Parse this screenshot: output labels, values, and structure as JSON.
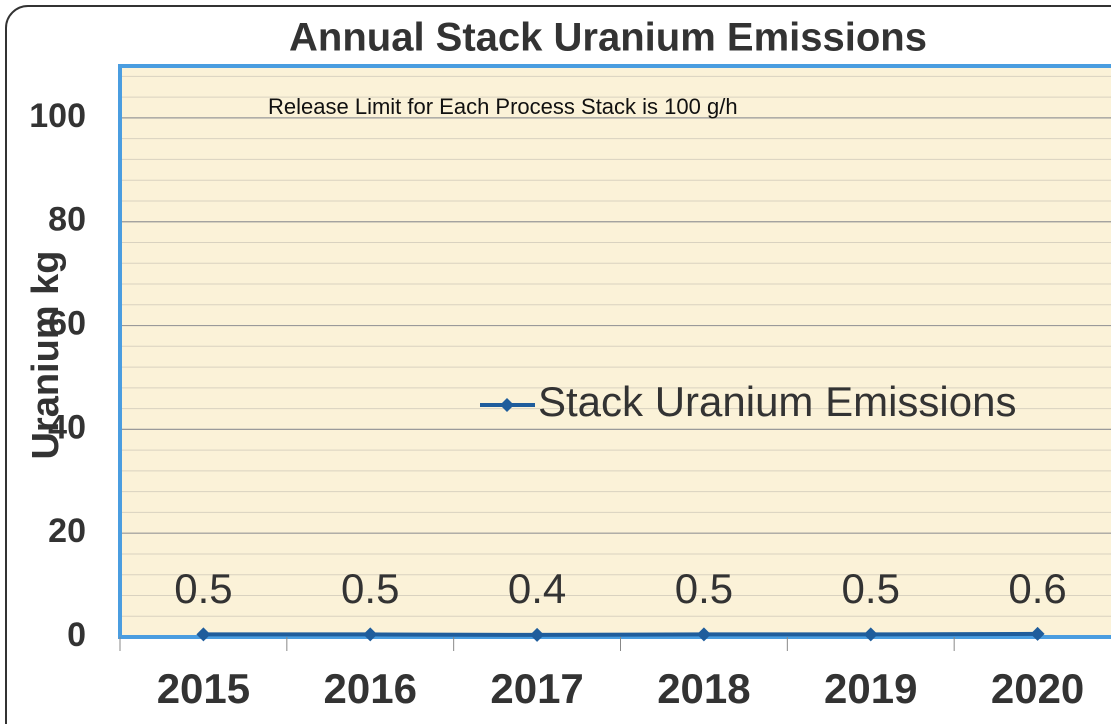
{
  "chart_data": {
    "type": "line",
    "title": "Annual Stack Uranium Emissions",
    "annotation": "Release Limit for Each Process Stack is 100 g/h",
    "y_label": "Uranium kg",
    "categories": [
      "2015",
      "2016",
      "2017",
      "2018",
      "2019",
      "2020"
    ],
    "series": [
      {
        "name": "Stack Uranium Emissions",
        "color": "#1f5d9c",
        "values": [
          0.5,
          0.5,
          0.4,
          0.5,
          0.5,
          0.6
        ]
      }
    ],
    "ylim": [
      0,
      110
    ],
    "yticks": [
      0,
      20,
      40,
      60,
      80,
      100
    ],
    "grid": true
  }
}
